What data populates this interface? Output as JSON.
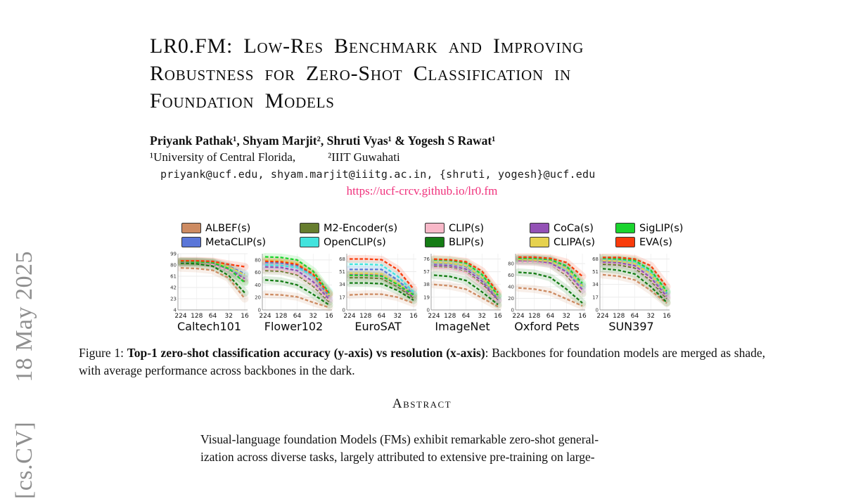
{
  "watermark": {
    "category": "[cs.CV]",
    "date": "18 May 2025"
  },
  "paper": {
    "title_lines": [
      "LR0.FM: Low-Res Benchmark and Improving",
      "Robustness for Zero-Shot Classification in",
      "Foundation Models"
    ],
    "authors": "Priyank Pathak¹, Shyam Marjit², Shruti Vyas¹ & Yogesh S Rawat¹",
    "affiliation_1": "¹University of Central Florida,",
    "affiliation_2": "²IIIT Guwahati",
    "emails": "priyank@ucf.edu, shyam.marjit@iiitg.ac.in, {shruti, yogesh}@ucf.edu",
    "url": "https://ucf-crcv.github.io/lr0.fm",
    "caption": {
      "prefix": "Figure 1: ",
      "bold": "Top-1 zero-shot classification accuracy (y-axis) vs resolution (x-axis)",
      "rest": ": Backbones for foundation models are merged as shade, with average performance across backbones in the dark."
    },
    "abstract_heading": "Abstract",
    "abstract_lines": [
      "Visual-language foundation Models (FMs) exhibit remarkable zero-shot general-",
      "ization across diverse tasks, largely attributed to extensive pre-training on large-"
    ]
  },
  "chart_data": {
    "type": "line",
    "line_style": "dashed",
    "grid": true,
    "legend_position": "top",
    "x": [
      224,
      128,
      64,
      32,
      16
    ],
    "xlabel": "resolution",
    "ylabel": "Top-1 zero-shot accuracy",
    "models": [
      {
        "name": "ALBEF(s)",
        "color": "#cd8b62"
      },
      {
        "name": "MetaCLIP(s)",
        "color": "#5a76d8"
      },
      {
        "name": "M2-Encoder(s)",
        "color": "#667d2e"
      },
      {
        "name": "OpenCLIP(s)",
        "color": "#42e3dd"
      },
      {
        "name": "CLIP(s)",
        "color": "#f8b8c8"
      },
      {
        "name": "BLIP(s)",
        "color": "#157c15"
      },
      {
        "name": "CoCa(s)",
        "color": "#9351b5"
      },
      {
        "name": "CLIPA(s)",
        "color": "#e6d24e"
      },
      {
        "name": "SigLIP(s)",
        "color": "#1ad42e"
      },
      {
        "name": "EVA(s)",
        "color": "#f93b0b"
      }
    ],
    "charts": [
      {
        "name": "Caltech101",
        "ylim": [
          4,
          99
        ],
        "yticks": [
          4,
          23,
          42,
          61,
          80,
          99
        ],
        "series": {
          "ALBEF(s)": [
            75,
            74,
            71,
            58,
            23
          ],
          "MetaCLIP(s)": [
            86,
            86,
            85,
            78,
            65
          ],
          "M2-Encoder(s)": [
            84,
            84,
            82,
            72,
            52
          ],
          "OpenCLIP(s)": [
            86,
            86,
            84,
            76,
            62
          ],
          "CLIP(s)": [
            84,
            84,
            81,
            70,
            55
          ],
          "BLIP(s)": [
            83,
            82,
            78,
            62,
            33
          ],
          "CoCa(s)": [
            85,
            85,
            83,
            73,
            57
          ],
          "CLIPA(s)": [
            86,
            86,
            85,
            77,
            63
          ],
          "SigLIP(s)": [
            86,
            85,
            84,
            74,
            50
          ],
          "EVA(s)": [
            87,
            87,
            86,
            81,
            77
          ]
        }
      },
      {
        "name": "Flower102",
        "ylim": [
          0,
          90
        ],
        "yticks": [
          0,
          20,
          40,
          60,
          80
        ],
        "series": {
          "ALBEF(s)": [
            25,
            24,
            21,
            12,
            4
          ],
          "MetaCLIP(s)": [
            76,
            75,
            71,
            55,
            22
          ],
          "M2-Encoder(s)": [
            63,
            62,
            56,
            38,
            13
          ],
          "OpenCLIP(s)": [
            72,
            71,
            68,
            54,
            30
          ],
          "CLIP(s)": [
            65,
            64,
            58,
            40,
            15
          ],
          "BLIP(s)": [
            48,
            46,
            40,
            25,
            8
          ],
          "CoCa(s)": [
            69,
            68,
            63,
            45,
            17
          ],
          "CLIPA(s)": [
            80,
            79,
            75,
            58,
            24
          ],
          "SigLIP(s)": [
            85,
            84,
            80,
            62,
            27
          ],
          "EVA(s)": [
            78,
            77,
            73,
            57,
            26
          ]
        }
      },
      {
        "name": "EuroSAT",
        "ylim": [
          0,
          75
        ],
        "yticks": [
          0,
          17,
          34,
          51,
          68
        ],
        "series": {
          "ALBEF(s)": [
            20,
            21,
            21,
            17,
            9
          ],
          "MetaCLIP(s)": [
            54,
            54,
            54,
            40,
            21
          ],
          "M2-Encoder(s)": [
            43,
            43,
            42,
            31,
            16
          ],
          "OpenCLIP(s)": [
            61,
            61,
            60,
            45,
            24
          ],
          "CLIP(s)": [
            45,
            45,
            44,
            33,
            18
          ],
          "BLIP(s)": [
            36,
            36,
            35,
            26,
            13
          ],
          "CoCa(s)": [
            47,
            47,
            46,
            34,
            17
          ],
          "CLIPA(s)": [
            49,
            49,
            48,
            36,
            19
          ],
          "SigLIP(s)": [
            46,
            46,
            45,
            34,
            20
          ],
          "EVA(s)": [
            68,
            68,
            67,
            54,
            28
          ]
        }
      },
      {
        "name": "ImageNet",
        "ylim": [
          0,
          84
        ],
        "yticks": [
          0,
          19,
          38,
          57,
          76
        ],
        "series": {
          "ALBEF(s)": [
            38,
            36,
            31,
            18,
            5
          ],
          "MetaCLIP(s)": [
            70,
            69,
            65,
            48,
            19
          ],
          "M2-Encoder(s)": [
            64,
            63,
            57,
            39,
            14
          ],
          "OpenCLIP(s)": [
            71,
            70,
            66,
            50,
            21
          ],
          "CLIP(s)": [
            63,
            62,
            56,
            37,
            12
          ],
          "BLIP(s)": [
            52,
            50,
            44,
            27,
            8
          ],
          "CoCa(s)": [
            67,
            66,
            61,
            43,
            15
          ],
          "CLIPA(s)": [
            71,
            70,
            66,
            49,
            20
          ],
          "SigLIP(s)": [
            75,
            74,
            70,
            53,
            22
          ],
          "EVA(s)": [
            76,
            75,
            72,
            58,
            26
          ]
        }
      },
      {
        "name": "Oxford Pets",
        "ylim": [
          0,
          97
        ],
        "yticks": [
          0,
          20,
          40,
          60,
          80
        ],
        "series": {
          "ALBEF(s)": [
            38,
            36,
            31,
            19,
            7
          ],
          "MetaCLIP(s)": [
            88,
            88,
            86,
            74,
            42
          ],
          "M2-Encoder(s)": [
            84,
            83,
            79,
            60,
            28
          ],
          "OpenCLIP(s)": [
            87,
            87,
            84,
            71,
            40
          ],
          "CLIP(s)": [
            83,
            83,
            79,
            62,
            31
          ],
          "BLIP(s)": [
            65,
            63,
            56,
            36,
            12
          ],
          "CoCa(s)": [
            85,
            85,
            81,
            66,
            35
          ],
          "CLIPA(s)": [
            87,
            86,
            84,
            72,
            41
          ],
          "SigLIP(s)": [
            89,
            89,
            87,
            76,
            46
          ],
          "EVA(s)": [
            91,
            91,
            89,
            82,
            58
          ]
        }
      },
      {
        "name": "SUN397",
        "ylim": [
          0,
          75
        ],
        "yticks": [
          0,
          17,
          34,
          51,
          68
        ],
        "series": {
          "ALBEF(s)": [
            47,
            45,
            40,
            26,
            9
          ],
          "MetaCLIP(s)": [
            66,
            66,
            63,
            49,
            22
          ],
          "M2-Encoder(s)": [
            61,
            60,
            56,
            39,
            15
          ],
          "OpenCLIP(s)": [
            67,
            67,
            64,
            51,
            24
          ],
          "CLIP(s)": [
            63,
            62,
            58,
            41,
            17
          ],
          "BLIP(s)": [
            55,
            53,
            48,
            31,
            10
          ],
          "CoCa(s)": [
            64,
            63,
            59,
            43,
            18
          ],
          "CLIPA(s)": [
            66,
            65,
            62,
            48,
            23
          ],
          "SigLIP(s)": [
            69,
            68,
            66,
            53,
            25
          ],
          "EVA(s)": [
            70,
            70,
            68,
            59,
            31
          ]
        }
      }
    ]
  }
}
